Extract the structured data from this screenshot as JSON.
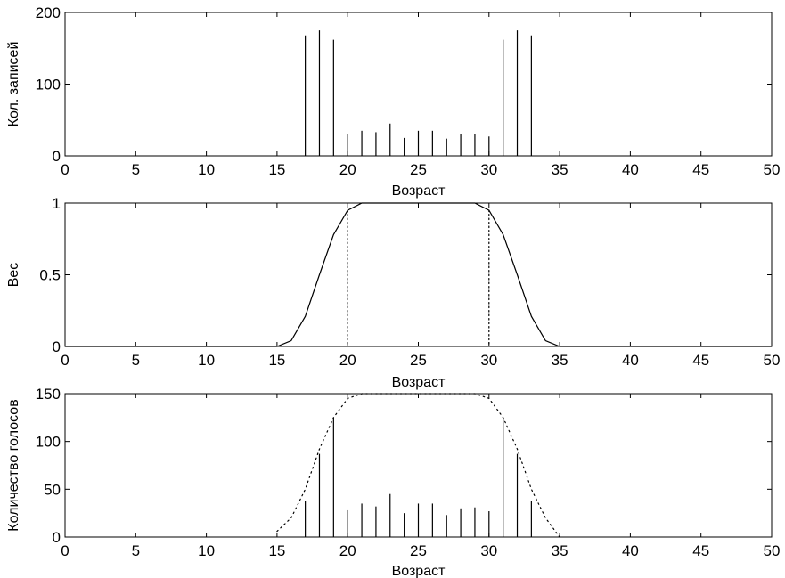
{
  "chart_data": [
    {
      "type": "bar",
      "xlabel": "Возраст",
      "ylabel": "Кол. записей",
      "xlim": [
        0,
        50
      ],
      "ylim": [
        0,
        200
      ],
      "xticks": [
        "0",
        "5",
        "10",
        "15",
        "20",
        "25",
        "30",
        "35",
        "40",
        "45",
        "50"
      ],
      "yticks": [
        "0",
        "100",
        "200"
      ],
      "grid": false,
      "x": [
        17,
        18,
        19,
        20,
        21,
        22,
        23,
        24,
        25,
        26,
        27,
        28,
        29,
        30,
        31,
        32,
        33
      ],
      "values": [
        168,
        175,
        162,
        30,
        35,
        33,
        45,
        25,
        35,
        35,
        24,
        30,
        31,
        27,
        162,
        175,
        168
      ]
    },
    {
      "type": "line",
      "xlabel": "Возраст",
      "ylabel": "Вес",
      "xlim": [
        0,
        50
      ],
      "ylim": [
        0,
        1
      ],
      "xticks": [
        "0",
        "5",
        "10",
        "15",
        "20",
        "25",
        "30",
        "35",
        "40",
        "45",
        "50"
      ],
      "yticks": [
        "0",
        "0.5",
        "1"
      ],
      "grid": false,
      "x": [
        0,
        15,
        16,
        17,
        18,
        19,
        20,
        21,
        22,
        23,
        24,
        25,
        26,
        27,
        28,
        29,
        30,
        31,
        32,
        33,
        34,
        35,
        50
      ],
      "values": [
        0,
        0,
        0.04,
        0.21,
        0.5,
        0.78,
        0.95,
        1,
        1,
        1,
        1,
        1,
        1,
        1,
        1,
        1,
        0.95,
        0.78,
        0.5,
        0.21,
        0.04,
        0,
        0
      ],
      "annotations": [
        {
          "type": "vline",
          "x": 20,
          "style": "dotted"
        },
        {
          "type": "vline",
          "x": 30,
          "style": "dotted"
        }
      ]
    },
    {
      "type": "bar",
      "xlabel": "Возраст",
      "ylabel": "Количество голосов",
      "xlim": [
        0,
        50
      ],
      "ylim": [
        0,
        150
      ],
      "xticks": [
        "0",
        "5",
        "10",
        "15",
        "20",
        "25",
        "30",
        "35",
        "40",
        "45",
        "50"
      ],
      "yticks": [
        "0",
        "50",
        "100",
        "150"
      ],
      "grid": false,
      "x": [
        17,
        18,
        19,
        20,
        21,
        22,
        23,
        24,
        25,
        26,
        27,
        28,
        29,
        30,
        31,
        32,
        33
      ],
      "values": [
        38,
        87,
        125,
        28,
        35,
        32,
        45,
        25,
        35,
        35,
        23,
        30,
        31,
        27,
        125,
        87,
        38
      ],
      "envelope": {
        "style": "dotted",
        "x": [
          15,
          16,
          17,
          18,
          19,
          20,
          21,
          22,
          23,
          24,
          25,
          26,
          27,
          28,
          29,
          30,
          31,
          32,
          33,
          34,
          35
        ],
        "values": [
          6,
          20,
          50,
          92,
          125,
          145,
          150,
          150,
          150,
          150,
          150,
          150,
          150,
          150,
          150,
          145,
          125,
          92,
          50,
          20,
          0
        ]
      }
    }
  ]
}
